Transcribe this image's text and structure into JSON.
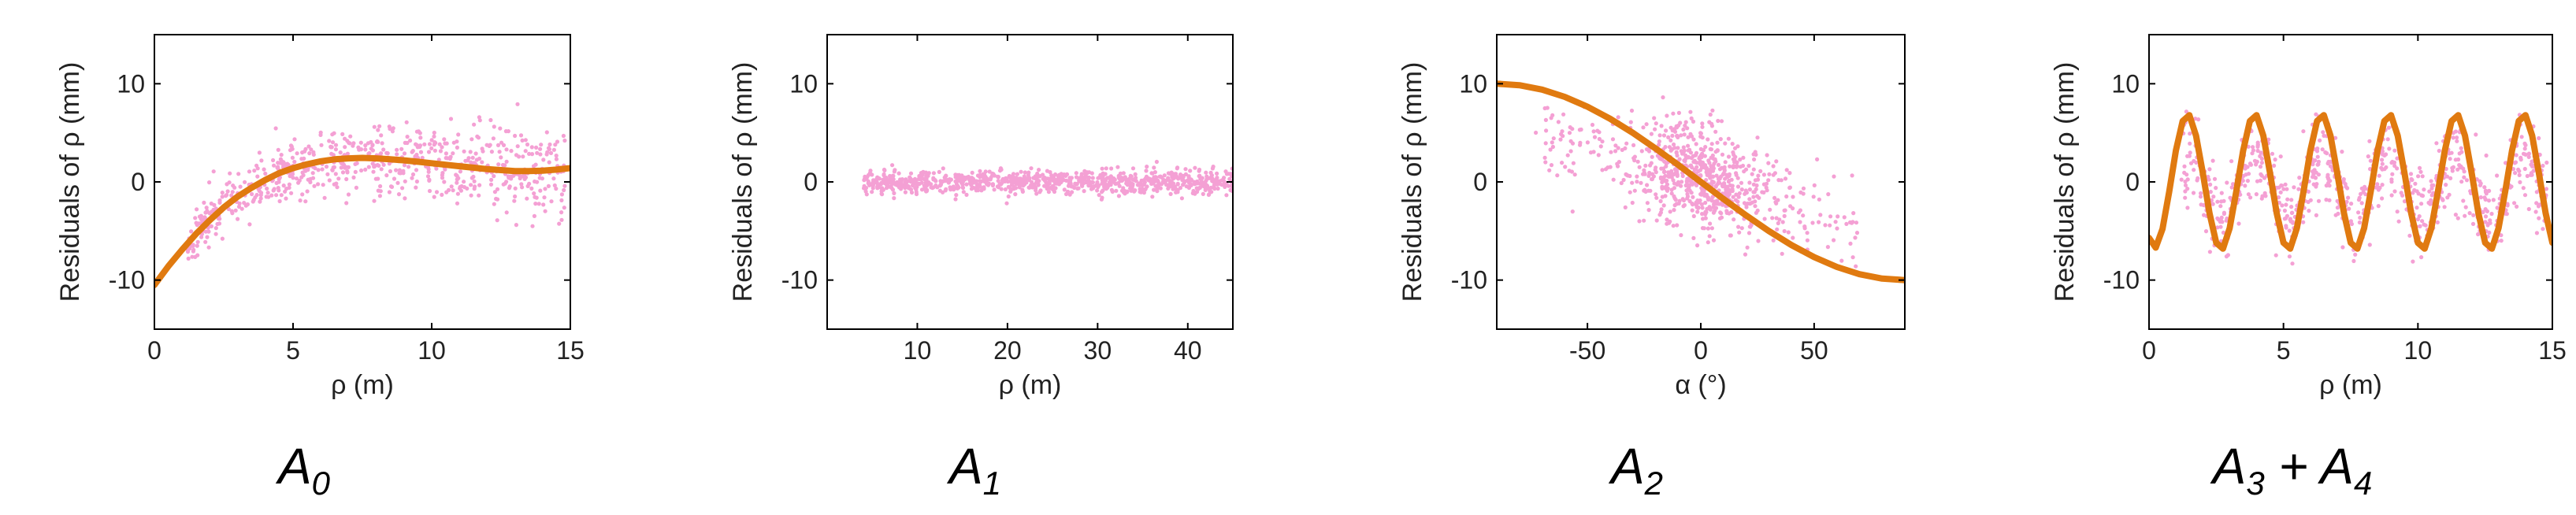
{
  "chart_data": [
    {
      "type": "scatter",
      "title": "",
      "xlabel": "ρ (m)",
      "ylabel": "Residuals of ρ (mm)",
      "xlim": [
        0,
        15
      ],
      "ylim": [
        -15,
        15
      ],
      "xticks": [
        0,
        5,
        10,
        15
      ],
      "yticks": [
        10,
        0,
        -10
      ],
      "grid": false,
      "caption": {
        "base": "A",
        "sub": "0",
        "suffix": ""
      },
      "scatter_color": "#f4a0d4",
      "fit_color": "#e07a10",
      "scatter": {
        "seed": 11,
        "count": 700,
        "x_range": [
          1.2,
          14.8
        ],
        "trend": "fit",
        "noise_mm": [
          1.2,
          2.6
        ]
      },
      "fit": {
        "x": [
          0,
          0.5,
          1,
          1.5,
          2,
          2.5,
          3,
          3.5,
          4,
          4.5,
          5,
          5.5,
          6,
          6.5,
          7,
          7.5,
          8,
          8.5,
          9,
          9.5,
          10,
          10.5,
          11,
          11.5,
          12,
          12.5,
          13,
          13.5,
          14,
          14.5,
          15
        ],
        "y": [
          -10.5,
          -8.6,
          -6.9,
          -5.3,
          -3.9,
          -2.6,
          -1.5,
          -0.6,
          0.2,
          0.9,
          1.4,
          1.8,
          2.1,
          2.3,
          2.4,
          2.45,
          2.4,
          2.3,
          2.2,
          2.05,
          1.9,
          1.75,
          1.6,
          1.45,
          1.3,
          1.2,
          1.1,
          1.1,
          1.15,
          1.25,
          1.4
        ]
      }
    },
    {
      "type": "scatter",
      "title": "",
      "xlabel": "ρ (m)",
      "ylabel": "Residuals of ρ (mm)",
      "xlim": [
        0,
        45
      ],
      "ylim": [
        -15,
        15
      ],
      "xticks": [
        10,
        20,
        30,
        40
      ],
      "yticks": [
        10,
        0,
        -10
      ],
      "grid": false,
      "caption": {
        "base": "A",
        "sub": "1",
        "suffix": ""
      },
      "scatter_color": "#f4a0d4",
      "fit_color": "#e07a10",
      "scatter": {
        "seed": 23,
        "count": 900,
        "x_range": [
          4,
          45
        ],
        "trend": "zero",
        "noise_mm": [
          0.6,
          0.6
        ]
      },
      "fit": null
    },
    {
      "type": "scatter",
      "title": "",
      "xlabel": "α (°)",
      "ylabel": "Residuals of ρ (mm)",
      "xlim": [
        -90,
        90
      ],
      "ylim": [
        -15,
        15
      ],
      "xticks": [
        -50,
        0,
        50
      ],
      "yticks": [
        10,
        0,
        -10
      ],
      "grid": false,
      "caption": {
        "base": "A",
        "sub": "2",
        "suffix": ""
      },
      "scatter_color": "#f4a0d4",
      "fit_color": "#e07a10",
      "scatter": {
        "seed": 37,
        "count": 800,
        "x_range": [
          -75,
          70
        ],
        "trend": "cluster",
        "noise_mm": [
          2.5,
          2.5
        ]
      },
      "fit": {
        "x": [
          -90,
          -80,
          -70,
          -60,
          -50,
          -40,
          -30,
          -20,
          -10,
          0,
          10,
          20,
          30,
          40,
          50,
          60,
          70,
          80,
          90
        ],
        "y": [
          10,
          9.85,
          9.4,
          8.66,
          7.66,
          6.43,
          5.0,
          3.42,
          1.74,
          0,
          -1.74,
          -3.42,
          -5.0,
          -6.43,
          -7.66,
          -8.66,
          -9.4,
          -9.85,
          -10
        ]
      }
    },
    {
      "type": "scatter",
      "title": "",
      "xlabel": "ρ (m)",
      "ylabel": "Residuals of ρ (mm)",
      "xlim": [
        0,
        15
      ],
      "ylim": [
        -15,
        15
      ],
      "xticks": [
        0,
        5,
        10,
        15
      ],
      "yticks": [
        10,
        0,
        -10
      ],
      "grid": false,
      "caption": {
        "base": "A",
        "sub": "3",
        "suffix": " + A",
        "sub2": "4"
      },
      "scatter_color": "#f4a0d4",
      "fit_color": "#e07a10",
      "scatter": {
        "seed": 53,
        "count": 750,
        "x_range": [
          1.2,
          14.8
        ],
        "trend": "halfwave",
        "noise_mm": [
          2.2,
          2.2
        ]
      },
      "fit": {
        "x": [
          0,
          0.25,
          0.5,
          0.75,
          1,
          1.25,
          1.5,
          1.75,
          2,
          2.25,
          2.5,
          2.75,
          3,
          3.25,
          3.5,
          3.75,
          4,
          4.25,
          4.5,
          4.75,
          5,
          5.25,
          5.5,
          5.75,
          6,
          6.25,
          6.5,
          6.75,
          7,
          7.25,
          7.5,
          7.75,
          8,
          8.25,
          8.5,
          8.75,
          9,
          9.25,
          9.5,
          9.75,
          10,
          10.25,
          10.5,
          10.75,
          11,
          11.25,
          11.5,
          11.75,
          12,
          12.25,
          12.5,
          12.75,
          13,
          13.25,
          13.5,
          13.75,
          14,
          14.25,
          14.5,
          14.75,
          15
        ],
        "y": [
          -5.7,
          -6.7,
          -4.8,
          -1.0,
          3.2,
          6.2,
          6.8,
          4.7,
          0.9,
          -3.2,
          -6.2,
          -6.8,
          -4.7,
          -0.9,
          3.2,
          6.2,
          6.8,
          4.7,
          0.9,
          -3.2,
          -6.2,
          -6.8,
          -4.7,
          -0.9,
          3.2,
          6.2,
          6.8,
          4.7,
          0.9,
          -3.2,
          -6.2,
          -6.8,
          -4.7,
          -0.9,
          3.2,
          6.2,
          6.8,
          4.7,
          0.9,
          -3.2,
          -6.2,
          -6.8,
          -4.7,
          -0.9,
          3.2,
          6.2,
          6.8,
          4.7,
          0.9,
          -3.2,
          -6.2,
          -6.8,
          -4.7,
          -0.9,
          3.2,
          6.2,
          6.8,
          4.7,
          0.9,
          -3.2,
          -6.2
        ]
      }
    }
  ]
}
